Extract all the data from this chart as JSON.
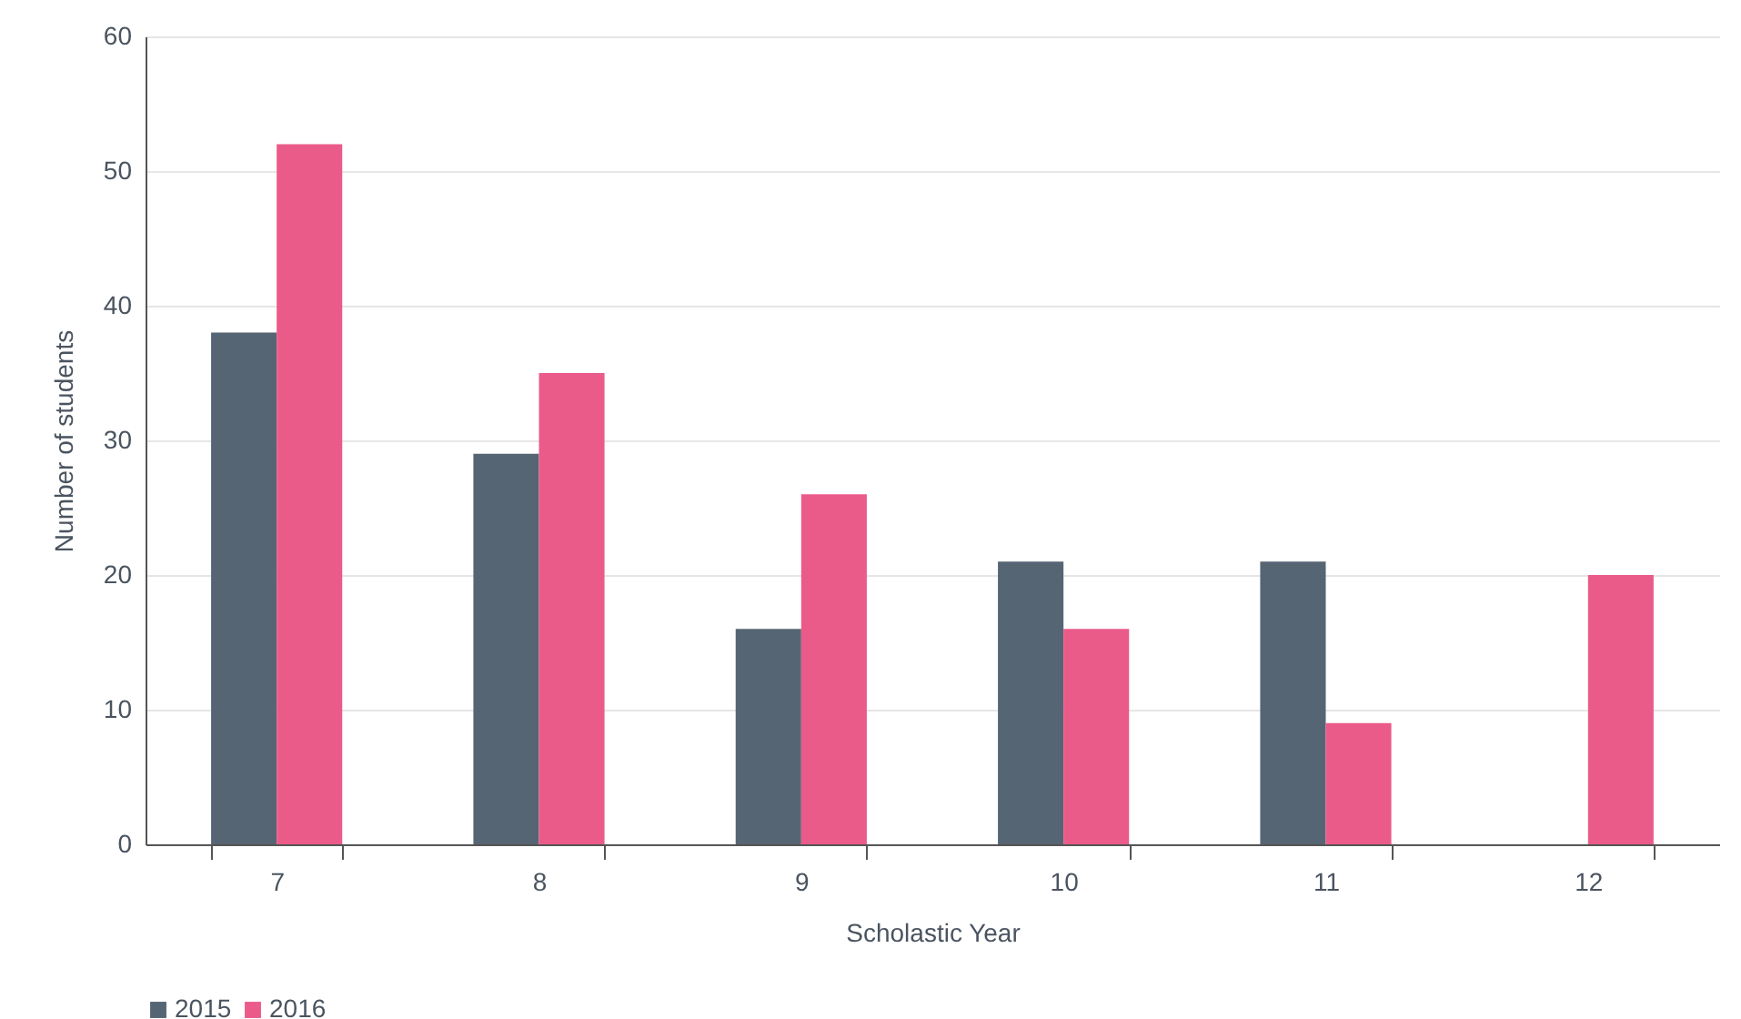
{
  "chart_data": {
    "type": "bar",
    "xlabel": "Scholastic Year",
    "ylabel": "Number of students",
    "categories": [
      "7",
      "8",
      "9",
      "10",
      "11",
      "12"
    ],
    "series": [
      {
        "name": "2015",
        "color": "#566573",
        "values": [
          38,
          29,
          16,
          21,
          21,
          null
        ]
      },
      {
        "name": "2016",
        "color": "#eb5b8a",
        "values": [
          52,
          35,
          26,
          16,
          9,
          20
        ]
      }
    ],
    "ylim": [
      0,
      60
    ],
    "yticks": [
      0,
      10,
      20,
      30,
      40,
      50,
      60
    ],
    "grid": "y",
    "legend": "bottom"
  }
}
